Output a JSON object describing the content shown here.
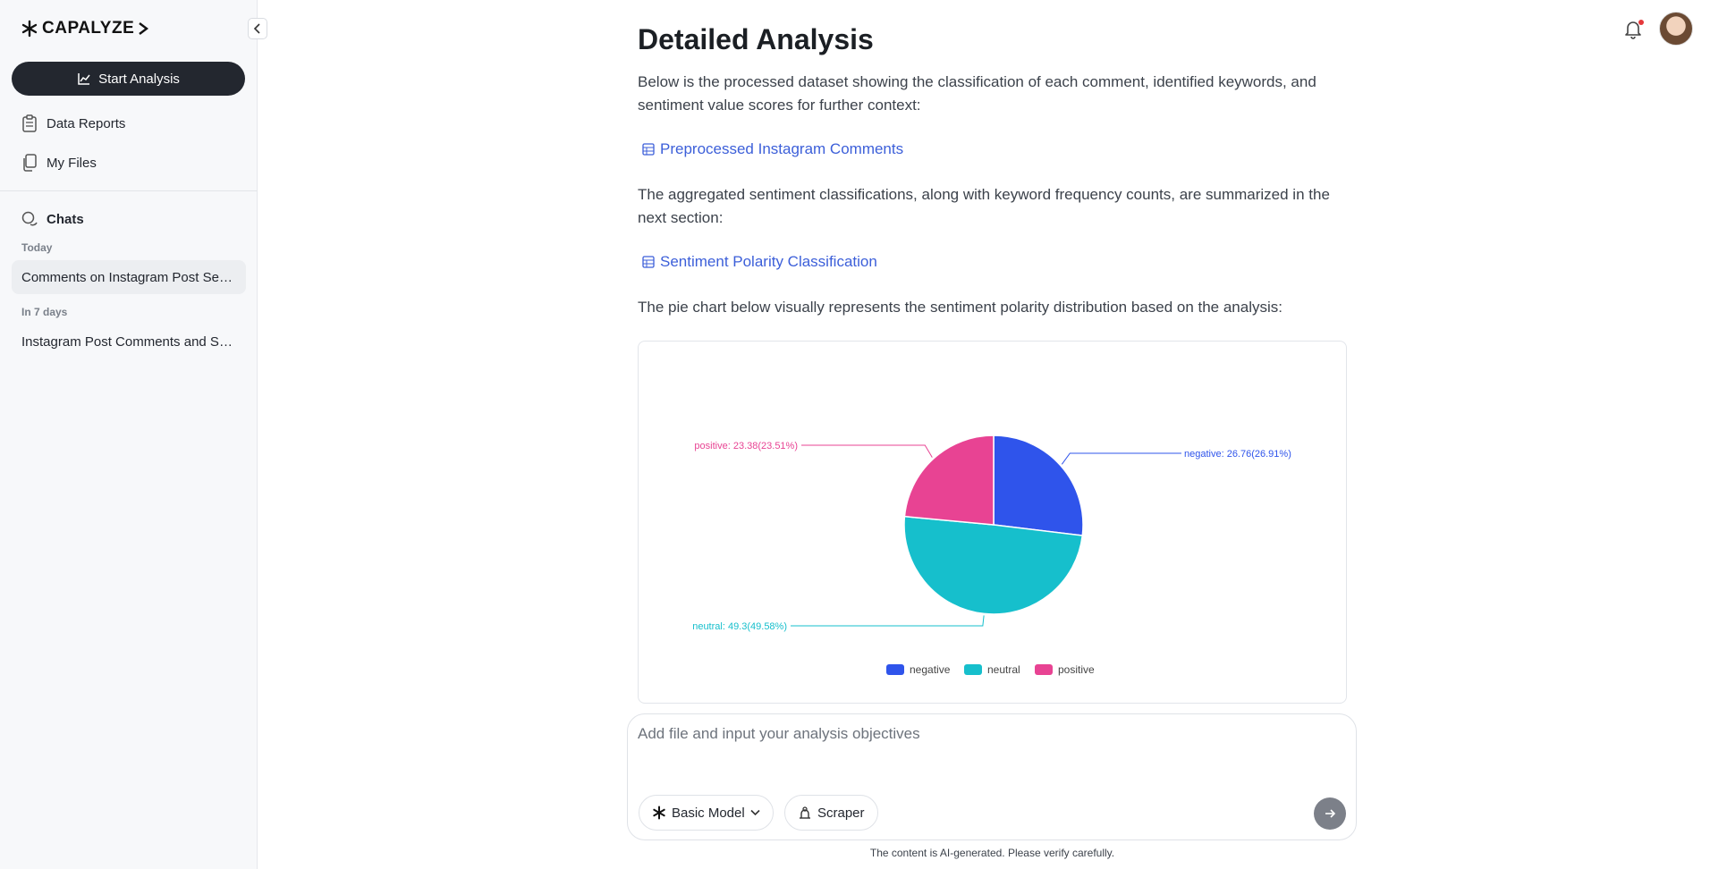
{
  "sidebar": {
    "logo": "CAPALYZE",
    "start_button": "Start Analysis",
    "nav": [
      {
        "label": "Data Reports",
        "icon": "clipboard-icon"
      },
      {
        "label": "My Files",
        "icon": "files-icon"
      }
    ],
    "chats_label": "Chats",
    "groups": [
      {
        "label": "Today",
        "items": [
          "Comments on Instagram Post Sentiment Analysis"
        ]
      },
      {
        "label": "In 7 days",
        "items": [
          "Instagram Post Comments and Sentiment"
        ]
      }
    ]
  },
  "main": {
    "title": "Detailed Analysis",
    "para1": "Below is the processed dataset showing the classification of each comment, identified keywords, and sentiment value scores for further context:",
    "link1": "Preprocessed Instagram Comments",
    "para2": "The aggregated sentiment classifications, along with keyword frequency counts, are summarized in the next section:",
    "link2": "Sentiment Polarity Classification",
    "para3": "The pie chart below visually represents the sentiment polarity distribution based on the analysis:"
  },
  "chart_data": {
    "type": "pie",
    "slices": [
      {
        "name": "negative",
        "value": 26.76,
        "percent": "26.91%",
        "color": "#2f54eb",
        "label": "negative: 26.76(26.91%)"
      },
      {
        "name": "neutral",
        "value": 49.3,
        "percent": "49.58%",
        "color": "#16bfcc",
        "label": "neutral: 49.3(49.58%)"
      },
      {
        "name": "positive",
        "value": 23.38,
        "percent": "23.51%",
        "color": "#e84393",
        "label": "positive: 23.38(23.51%)"
      }
    ],
    "legend": [
      "negative",
      "neutral",
      "positive"
    ],
    "legend_position": "bottom"
  },
  "composer": {
    "placeholder": "Add file and input your analysis objectives",
    "model_label": "Basic Model",
    "scraper_label": "Scraper",
    "disclaimer": "The content is AI-generated. Please verify carefully."
  }
}
